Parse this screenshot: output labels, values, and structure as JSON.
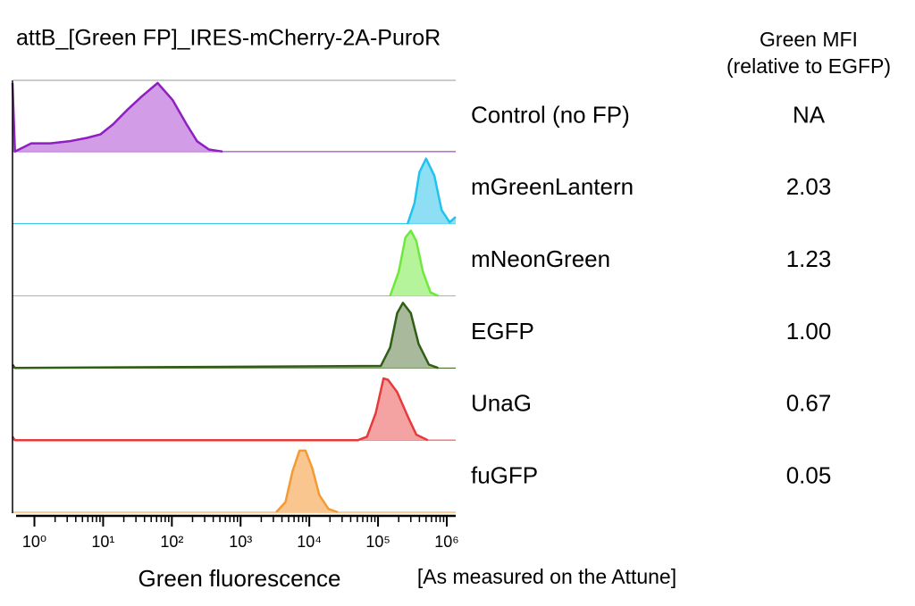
{
  "chart_data": {
    "type": "ridgeline",
    "title": "attB_[Green FP]_IRES-mCherry-2A-PuroR",
    "x_label": "Green fluorescence",
    "note": "[As measured on the Attune]",
    "mfi_title": [
      "Green MFI",
      "(relative to EGFP)"
    ],
    "log_x": true,
    "xlim": [
      0.48,
      1350000
    ],
    "xticks": [
      {
        "value": 1,
        "label": "10⁰"
      },
      {
        "value": 10,
        "label": "10¹"
      },
      {
        "value": 100,
        "label": "10²"
      },
      {
        "value": 1000,
        "label": "10³"
      },
      {
        "value": 10000,
        "label": "10⁴"
      },
      {
        "value": 100000,
        "label": "10⁵"
      },
      {
        "value": 1000000,
        "label": "10⁶"
      }
    ],
    "ylim": [
      0,
      100
    ],
    "series": [
      {
        "name": "Control (no FP)",
        "color": "#8e1fc0",
        "fill": "#d39ce6",
        "mfi": null,
        "mfi_label": "NA",
        "x": [
          0.48,
          0.52,
          0.9,
          1.7,
          3.2,
          5.8,
          9.1,
          14,
          22,
          36,
          62,
          103,
          163,
          233,
          346,
          545
        ],
        "values": [
          100,
          0,
          12,
          12,
          15,
          20,
          25,
          40,
          60,
          80,
          100,
          75,
          40,
          15,
          3,
          0
        ]
      },
      {
        "name": "mGreenLantern",
        "color": "#1fc3ec",
        "fill": "#8fdff4",
        "mfi": 2.03,
        "mfi_label": "2.03",
        "x": [
          270000,
          340000,
          400000,
          500000,
          660000,
          840000,
          1100000,
          1350000
        ],
        "values": [
          0,
          30,
          75,
          95,
          70,
          20,
          2,
          10
        ]
      },
      {
        "name": "mNeonGreen",
        "color": "#6fe83c",
        "fill": "#b5f49a",
        "mfi": 1.23,
        "mfi_label": "1.23",
        "x": [
          150000,
          200000,
          250000,
          300000,
          360000,
          450000,
          580000,
          750000
        ],
        "values": [
          0,
          35,
          85,
          95,
          80,
          35,
          5,
          0
        ]
      },
      {
        "name": "EGFP",
        "color": "#2f5e14",
        "fill": "#a9b99b",
        "mfi": 1.0,
        "mfi_label": "1.00",
        "x": [
          0.48,
          0.52,
          110000,
          150000,
          190000,
          230000,
          300000,
          390000,
          550000,
          750000
        ],
        "values": [
          5,
          0,
          3,
          30,
          80,
          95,
          80,
          35,
          5,
          0
        ]
      },
      {
        "name": "UnaG",
        "color": "#e83a3a",
        "fill": "#f4a2a2",
        "mfi": 0.67,
        "mfi_label": "0.67",
        "x": [
          0.48,
          0.52,
          51000,
          69000,
          93000,
          120000,
          140000,
          190000,
          270000,
          360000,
          530000
        ],
        "values": [
          5,
          0,
          0,
          5,
          40,
          90,
          88,
          70,
          35,
          8,
          0
        ]
      },
      {
        "name": "fuGFP",
        "color": "#f39a35",
        "fill": "#f8c68e",
        "mfi": 0.05,
        "mfi_label": "0.05",
        "x": [
          3300,
          4500,
          5700,
          7200,
          8800,
          11000,
          14000,
          19000,
          26000
        ],
        "values": [
          0,
          15,
          60,
          90,
          90,
          65,
          25,
          5,
          0
        ]
      }
    ]
  }
}
